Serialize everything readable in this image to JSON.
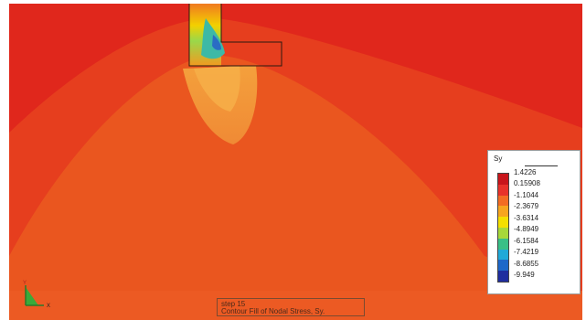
{
  "colors": {
    "background": "#ffffff",
    "outer_red": "#e0271c",
    "mid_orange": "#ea4f1d",
    "deep_orange": "#f07a25",
    "plume_orange": "#f29536",
    "yellow": "#f5d900",
    "green": "#6fce3d",
    "cyan": "#33b5c8",
    "blue": "#1e57c7"
  },
  "legend": {
    "title": "Sy",
    "labels": [
      "1.4226",
      "0.15908",
      "-1.1044",
      "-2.3679",
      "-3.6314",
      "-4.8949",
      "-6.1584",
      "-7.4219",
      "-8.6855",
      "-9.949"
    ],
    "band_colors": [
      "#c8151b",
      "#e8322a",
      "#f36c23",
      "#f7a51f",
      "#f4df00",
      "#a7d83a",
      "#39bf86",
      "#20a9d8",
      "#1d68c9",
      "#1f2d9e"
    ]
  },
  "caption": {
    "line1": "step 15",
    "line2": "Contour Fill of Nodal Stress, Sy."
  },
  "triad": {
    "y_label": "Y",
    "x_label": "X"
  }
}
